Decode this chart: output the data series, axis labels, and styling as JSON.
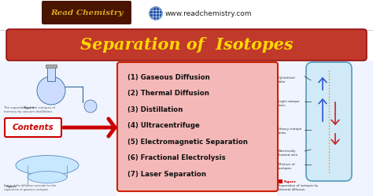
{
  "bg_color": "#ffffff",
  "title_banner_color": "#c0392b",
  "title_banner_edge": "#8B0000",
  "title_text": "Separation of  Isotopes",
  "title_color": "#FFD700",
  "title_fontsize": 15,
  "brand_text": "Read Chemistry",
  "brand_color": "#DAA520",
  "brand_bg": "#4a1500",
  "website_text": "www.readchemistry.com",
  "website_color": "#222222",
  "website_fontsize": 6.5,
  "contents_text": "Contents",
  "contents_color": "#cc0000",
  "arrow_color": "#cc0000",
  "list_box_color": "#f5b8b8",
  "list_box_border": "#cc2200",
  "list_items": [
    "(1) Gaseous Diffusion",
    "(2) Thermal Diffusion",
    "(3) Distillation",
    "(4) Ultracentrifuge",
    "(5) Electromagnetic Separation",
    "(6) Fractional Electrolysis",
    "(7) Laser Separation"
  ],
  "list_color": "#111111",
  "list_fontsize": 6.2,
  "footer_text": "Separation of isotopes by\nthermal diffusion.",
  "footer_label": "Figure",
  "footer_label_color": "#cc0000",
  "cyl_fill": "#d0eaf8",
  "cyl_edge": "#5599bb",
  "wire_color": "#ff8800",
  "arrow_up_color": "#3355cc",
  "arrow_dn_color": "#cc2222",
  "label_color": "#333333",
  "label_fontsize": 3.0
}
